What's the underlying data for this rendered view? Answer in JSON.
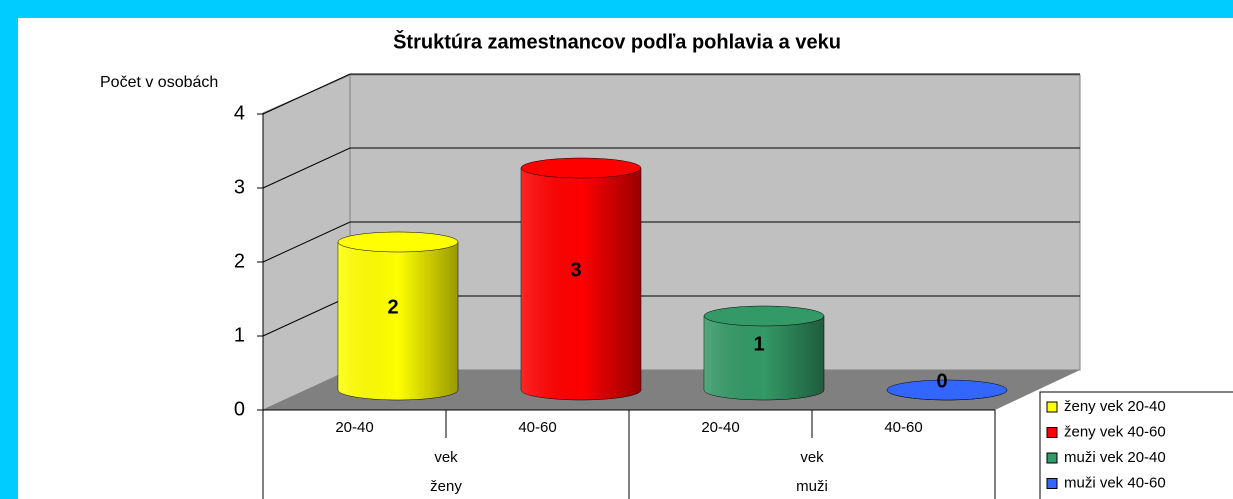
{
  "chart_data": {
    "type": "bar",
    "title": "Štruktúra zamestnancov podľa pohlavia a veku",
    "y_label": "Počet v osobách",
    "categories": [
      "20-40",
      "40-60",
      "20-40",
      "40-60"
    ],
    "groups": [
      {
        "label": "ženy",
        "sublabel": "vek"
      },
      {
        "label": "muži",
        "sublabel": "vek"
      }
    ],
    "series": [
      {
        "name": "ženy vek 20-40",
        "color": "#ffff00",
        "values": [
          2,
          null,
          null,
          null
        ]
      },
      {
        "name": "ženy vek 40-60",
        "color": "#ff0000",
        "values": [
          null,
          3,
          null,
          null
        ]
      },
      {
        "name": "muži vek 20-40",
        "color": "#339966",
        "values": [
          null,
          null,
          1,
          null
        ]
      },
      {
        "name": "muži vek 40-60",
        "color": "#3366ff",
        "values": [
          null,
          null,
          null,
          0
        ]
      }
    ],
    "ylim": [
      0,
      4
    ],
    "yticks": [
      0,
      1,
      2,
      3,
      4
    ],
    "grid": true,
    "legend": "bottom-right"
  }
}
